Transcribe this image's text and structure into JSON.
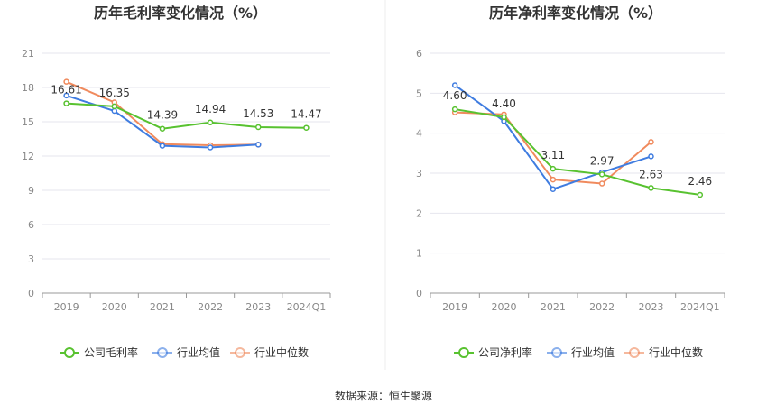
{
  "source_text": "数据来源：恒生聚源",
  "colors": {
    "company": "#58c230",
    "industry_avg": "#3f7ce0",
    "industry_median": "#f08a5d"
  },
  "chart_data": [
    {
      "type": "line",
      "title": "历年毛利率变化情况（%）",
      "categories": [
        "2019",
        "2020",
        "2021",
        "2022",
        "2023",
        "2024Q1"
      ],
      "ylim": [
        0,
        21
      ],
      "yticks": [
        "0",
        "3",
        "6",
        "9",
        "12",
        "15",
        "18",
        "21"
      ],
      "series": [
        {
          "name": "公司毛利率",
          "key": "company",
          "values": [
            16.61,
            16.35,
            14.39,
            14.94,
            14.53,
            14.47
          ],
          "labels": [
            "16.61",
            "16.35",
            "14.39",
            "14.94",
            "14.53",
            "14.47"
          ]
        },
        {
          "name": "行业均值",
          "key": "industry_avg",
          "values": [
            17.3,
            15.95,
            12.9,
            12.75,
            13.0,
            null
          ]
        },
        {
          "name": "行业中位数",
          "key": "industry_median",
          "values": [
            18.5,
            16.7,
            13.05,
            12.95,
            13.0,
            null
          ]
        }
      ]
    },
    {
      "type": "line",
      "title": "历年净利率变化情况（%）",
      "categories": [
        "2019",
        "2020",
        "2021",
        "2022",
        "2023",
        "2024Q1"
      ],
      "ylim": [
        0,
        6
      ],
      "yticks": [
        "0",
        "1",
        "2",
        "3",
        "4",
        "5",
        "6"
      ],
      "series": [
        {
          "name": "公司净利率",
          "key": "company",
          "values": [
            4.6,
            4.4,
            3.11,
            2.97,
            2.63,
            2.46
          ],
          "labels": [
            "4.60",
            "4.40",
            "3.11",
            "2.97",
            "2.63",
            "2.46"
          ]
        },
        {
          "name": "行业均值",
          "key": "industry_avg",
          "values": [
            5.2,
            4.3,
            2.6,
            3.02,
            3.42,
            null
          ]
        },
        {
          "name": "行业中位数",
          "key": "industry_median",
          "values": [
            4.52,
            4.47,
            2.84,
            2.74,
            3.78,
            null
          ]
        }
      ]
    }
  ]
}
